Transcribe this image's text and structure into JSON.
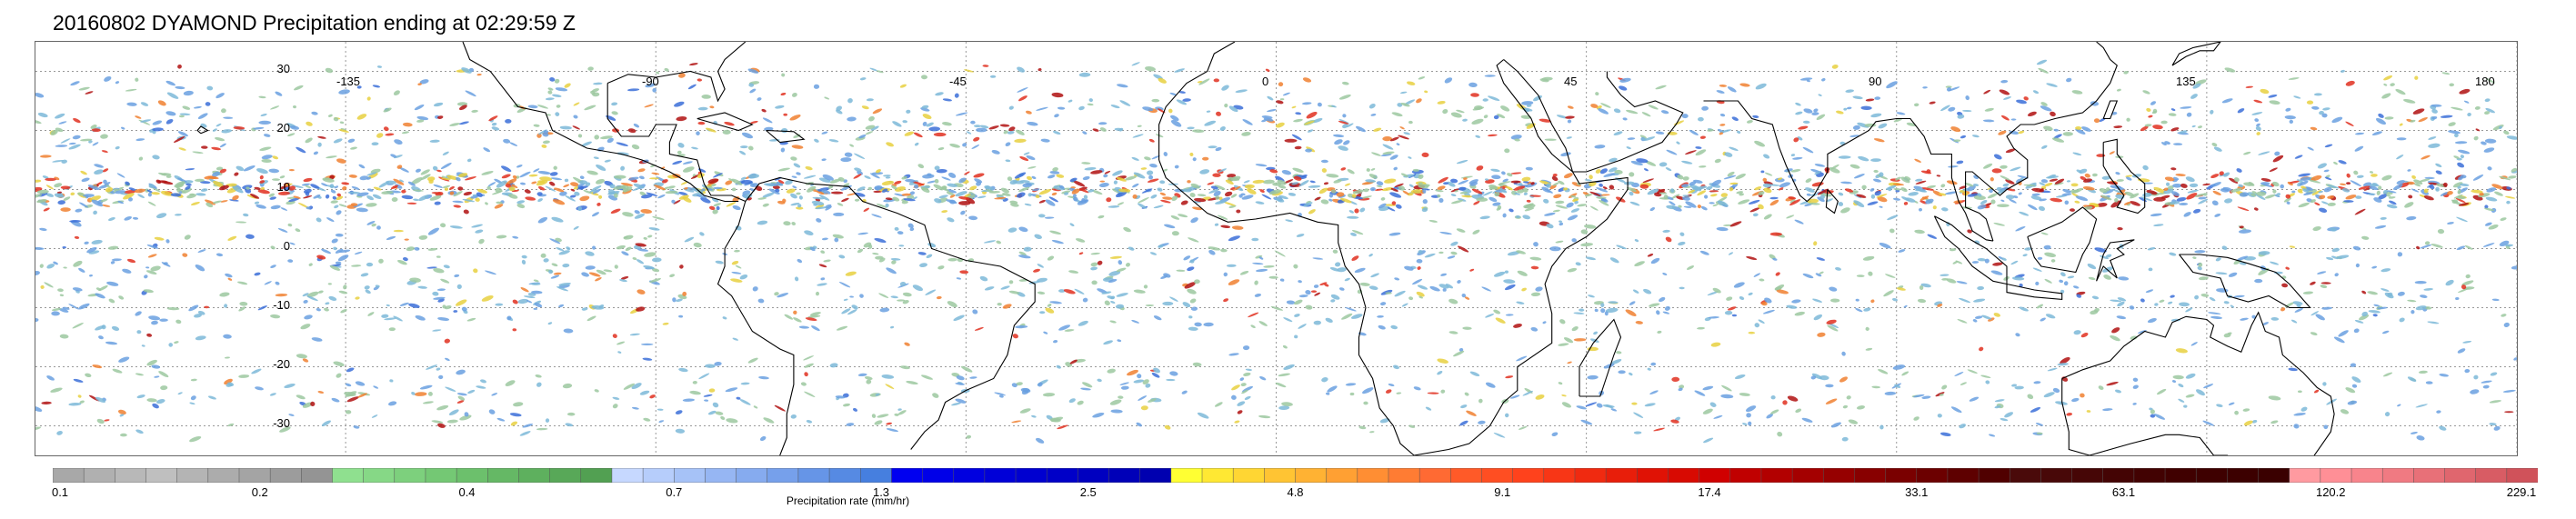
{
  "title": "20160802 DYAMOND Precipitation ending at 02:29:59 Z",
  "map": {
    "projection": "equirectangular",
    "lon_range": [
      -180,
      180
    ],
    "lat_range": [
      -35,
      35
    ],
    "gridlines": "dotted",
    "lon_labels": [
      "-135",
      "-90",
      "-45",
      "0",
      "45",
      "90",
      "135",
      "180"
    ],
    "lat_labels": [
      "30",
      "20",
      "10",
      "0",
      "-10",
      "-20",
      "-30"
    ],
    "background": "#ffffff",
    "coastline_color": "#000000"
  },
  "colorbar": {
    "label": "Precipitation rate (mm/hr)",
    "tick_labels": [
      "0.1",
      "0.2",
      "0.4",
      "0.7",
      "1.3",
      "2.5",
      "4.8",
      "9.1",
      "17.4",
      "33.1",
      "63.1",
      "120.2",
      "229.1"
    ],
    "colors": [
      "#a8a8a8",
      "#b0b0b0",
      "#b8b8b8",
      "#bfbfbf",
      "#b4b4b4",
      "#acacac",
      "#a4a4a4",
      "#9c9c9c",
      "#949494",
      "#8fe08f",
      "#86d886",
      "#7dd07d",
      "#74c874",
      "#6cc06c",
      "#65b865",
      "#5eb05e",
      "#58a858",
      "#52a052",
      "#c6d8ff",
      "#b6cdfb",
      "#a6c2f7",
      "#96b6f3",
      "#86abef",
      "#76a0eb",
      "#6695e7",
      "#568ae3",
      "#467fdf",
      "#0000f0",
      "#0000e8",
      "#0000e0",
      "#0000d8",
      "#0000d0",
      "#0000c8",
      "#0000c0",
      "#0000b8",
      "#0000b0",
      "#ffff33",
      "#ffe833",
      "#ffd633",
      "#ffc433",
      "#ffb233",
      "#ffa033",
      "#ff8e33",
      "#ff7c33",
      "#ff6a33",
      "#ff5a28",
      "#ff4e22",
      "#ff421c",
      "#f83616",
      "#f02a10",
      "#e81e0a",
      "#e01205",
      "#d80a02",
      "#d00000",
      "#c00000",
      "#b20000",
      "#a40000",
      "#960000",
      "#880000",
      "#7a0000",
      "#6c0000",
      "#5e0000",
      "#500000",
      "#4a0a0a",
      "#480808",
      "#460606",
      "#440404",
      "#420202",
      "#400000",
      "#3e0000",
      "#3c0000",
      "#3a0000",
      "#ff9aa0",
      "#ff8f96",
      "#f8848c",
      "#f07a82",
      "#e87078",
      "#e0666e",
      "#d85c64",
      "#d0525a"
    ]
  }
}
